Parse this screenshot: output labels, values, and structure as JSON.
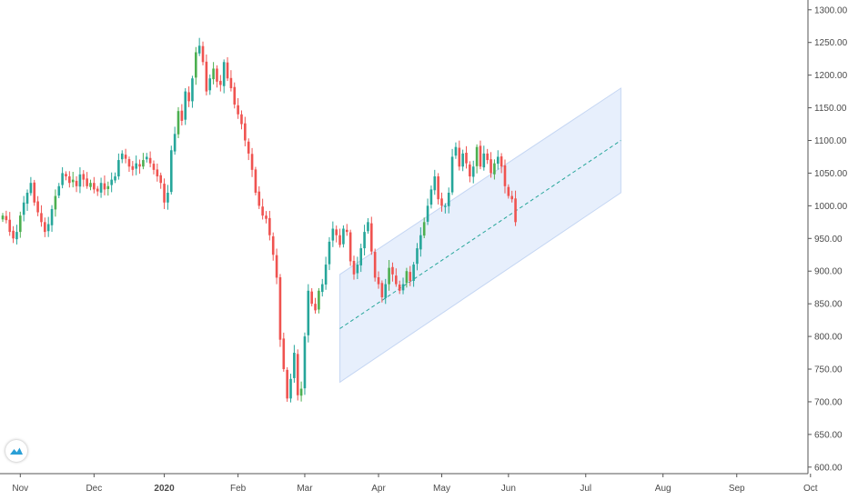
{
  "chart_data": {
    "type": "candlestick",
    "colors": {
      "up": "#26a69a",
      "up_alt": "#4caf50",
      "down": "#ef5350",
      "channel_fill": "#e3ecfb",
      "channel_edge": "#c5d6f3",
      "midline": "#26a69a",
      "axis": "#555555"
    },
    "ylim": [
      590,
      1315
    ],
    "y_ticks": [
      "1300.00",
      "1250.00",
      "1200.00",
      "1150.00",
      "1100.00",
      "1050.00",
      "1000.00",
      "950.00",
      "900.00",
      "850.00",
      "800.00",
      "750.00",
      "700.00",
      "650.00",
      "600.00"
    ],
    "y_tick_values": [
      1300,
      1250,
      1200,
      1150,
      1100,
      1050,
      1000,
      950,
      900,
      850,
      800,
      750,
      700,
      650,
      600
    ],
    "x_ticks": [
      {
        "label": "Nov",
        "bar": 5,
        "bold": false
      },
      {
        "label": "Dec",
        "bar": 26,
        "bold": false
      },
      {
        "label": "2020",
        "bar": 46,
        "bold": true
      },
      {
        "label": "Feb",
        "bar": 67,
        "bold": false
      },
      {
        "label": "Mar",
        "bar": 86,
        "bold": false
      },
      {
        "label": "Apr",
        "bar": 107,
        "bold": false
      },
      {
        "label": "May",
        "bar": 125,
        "bold": false
      },
      {
        "label": "Jun",
        "bar": 144,
        "bold": false
      },
      {
        "label": "Jul",
        "bar": 166,
        "bold": false
      },
      {
        "label": "Aug",
        "bar": 188,
        "bold": false
      },
      {
        "label": "Sep",
        "bar": 209,
        "bold": false
      },
      {
        "label": "Oct",
        "bar": 230,
        "bold": false
      }
    ],
    "channel": {
      "start_bar": 96,
      "end_bar": 176,
      "upper": [
        895,
        1180
      ],
      "lower": [
        730,
        1020
      ],
      "mid": [
        812,
        1100
      ]
    },
    "closes": [
      985,
      978,
      960,
      950,
      960,
      985,
      1005,
      1020,
      1035,
      1005,
      990,
      975,
      960,
      972,
      995,
      1015,
      1030,
      1050,
      1045,
      1035,
      1040,
      1030,
      1048,
      1040,
      1030,
      1035,
      1025,
      1022,
      1035,
      1025,
      1030,
      1040,
      1045,
      1070,
      1080,
      1072,
      1060,
      1055,
      1065,
      1060,
      1070,
      1075,
      1065,
      1055,
      1045,
      1035,
      1005,
      1020,
      1085,
      1110,
      1145,
      1130,
      1175,
      1160,
      1195,
      1235,
      1245,
      1220,
      1175,
      1195,
      1210,
      1190,
      1185,
      1220,
      1195,
      1180,
      1155,
      1140,
      1125,
      1100,
      1080,
      1055,
      1020,
      1000,
      985,
      980,
      955,
      925,
      890,
      795,
      750,
      705,
      735,
      775,
      710,
      720,
      800,
      870,
      850,
      840,
      870,
      880,
      910,
      945,
      965,
      955,
      940,
      965,
      960,
      915,
      895,
      910,
      935,
      960,
      975,
      930,
      890,
      880,
      860,
      880,
      905,
      895,
      880,
      870,
      880,
      900,
      885,
      910,
      935,
      955,
      975,
      1000,
      1025,
      1045,
      1010,
      1000,
      1000,
      1020,
      1075,
      1090,
      1060,
      1080,
      1065,
      1045,
      1060,
      1090,
      1060,
      1080,
      1070,
      1050,
      1065,
      1075,
      1060,
      1030,
      1015,
      1010,
      975
    ],
    "series": [
      {
        "name": "",
        "type": "candlestick"
      }
    ]
  }
}
